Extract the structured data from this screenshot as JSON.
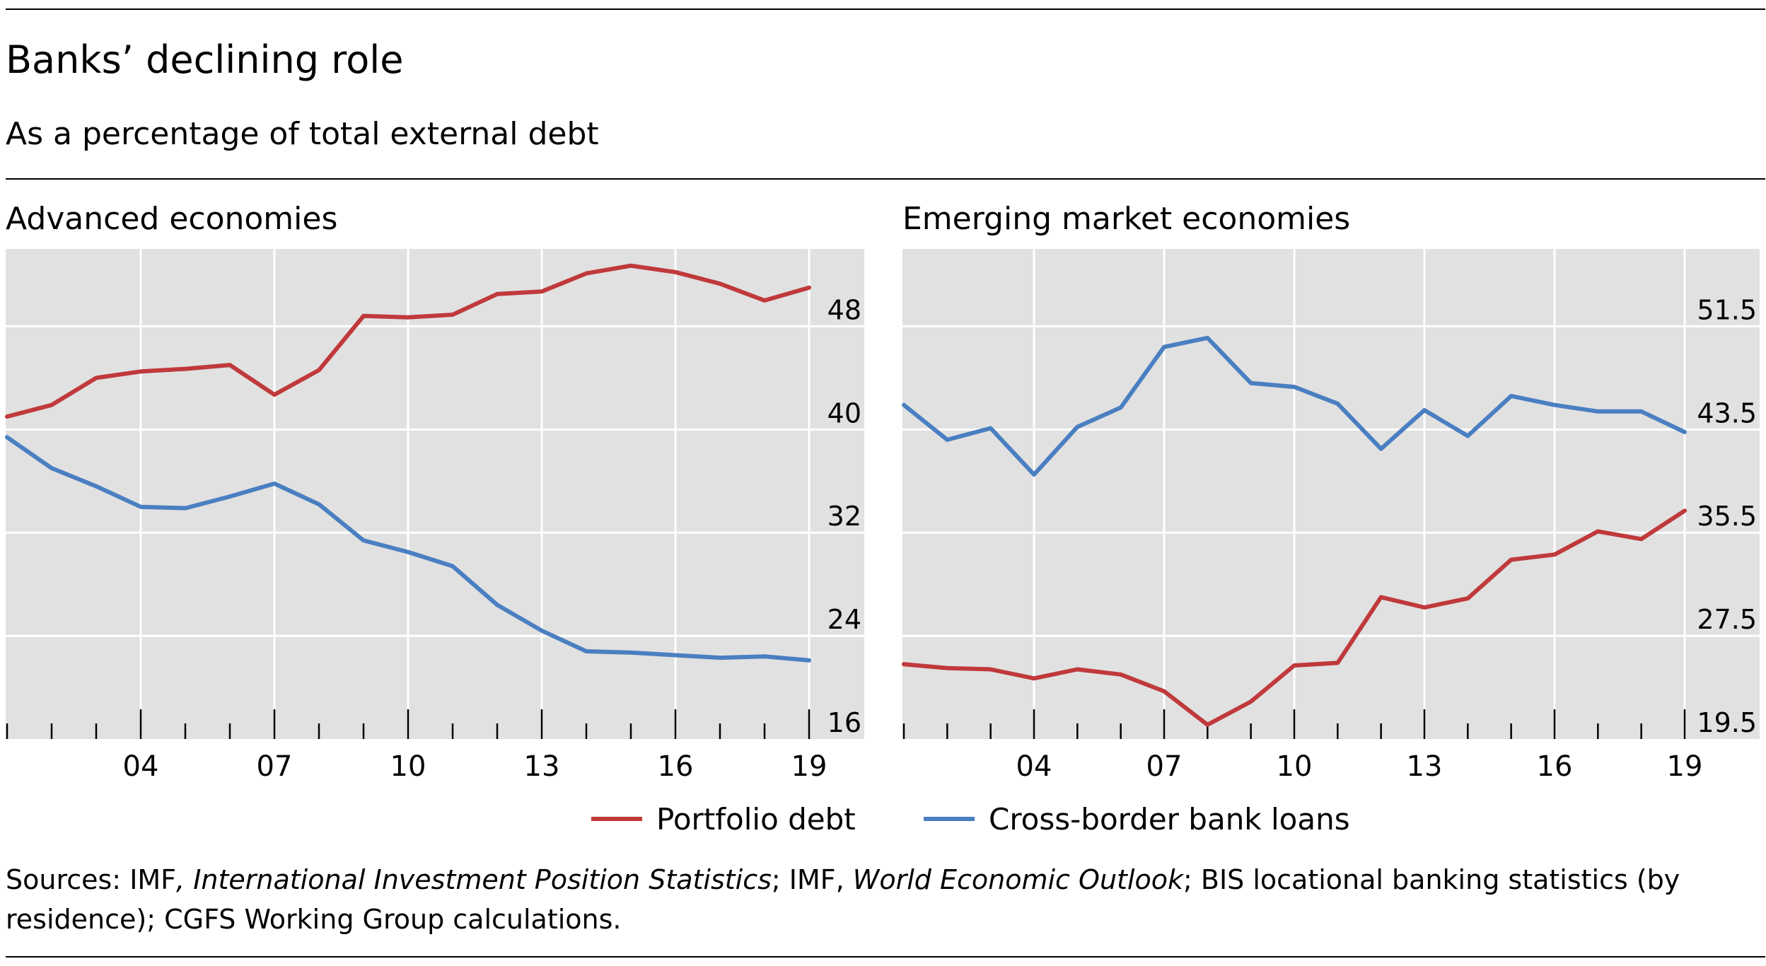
{
  "header": {
    "title": "Banks’ declining role",
    "subtitle": "As a percentage of total external debt"
  },
  "legend": {
    "portfolio_label": "Portfolio debt",
    "bank_label": "Cross-border bank loans"
  },
  "colors": {
    "portfolio": "#c0393b",
    "bank": "#4a7fc1",
    "plot_background": "#e1e1e1",
    "gridline": "#ffffff"
  },
  "sources": {
    "prefix": "Sources: IMF",
    "comma1": ", ",
    "iips": "International Investment Position Statistics",
    "mid": "; IMF, ",
    "weo": "World Economic Outlook",
    "suffix": "; BIS locational banking statistics (by residence); CGFS Working Group calculations."
  },
  "chart_data": [
    {
      "type": "line",
      "title": "Advanced economies",
      "x": [
        2001,
        2002,
        2003,
        2004,
        2005,
        2006,
        2007,
        2008,
        2009,
        2010,
        2011,
        2012,
        2013,
        2014,
        2015,
        2016,
        2017,
        2018,
        2019
      ],
      "x_tick_labels": [
        "04",
        "07",
        "10",
        "13",
        "16",
        "19"
      ],
      "x_tick_values": [
        2004,
        2007,
        2010,
        2013,
        2016,
        2019
      ],
      "y_ticks": [
        16,
        24,
        32,
        40,
        48
      ],
      "y_tick_labels": [
        "16",
        "24",
        "32",
        "40",
        "48"
      ],
      "ylim": [
        16,
        54
      ],
      "y_axis_side": "right",
      "grid": true,
      "series": [
        {
          "name": "Portfolio debt",
          "color": "#c0393b",
          "values": [
            41.0,
            41.9,
            44.0,
            44.5,
            44.7,
            45.0,
            42.7,
            44.6,
            48.8,
            48.7,
            48.9,
            50.5,
            50.7,
            52.1,
            52.7,
            52.2,
            51.3,
            50.0,
            51.0
          ]
        },
        {
          "name": "Cross-border bank loans",
          "color": "#4a7fc1",
          "values": [
            39.4,
            37.0,
            35.6,
            34.0,
            33.9,
            34.8,
            35.8,
            34.2,
            31.4,
            30.5,
            29.4,
            26.4,
            24.4,
            22.8,
            22.7,
            22.5,
            22.3,
            22.4,
            22.1
          ]
        }
      ]
    },
    {
      "type": "line",
      "title": "Emerging market economies",
      "x": [
        2001,
        2002,
        2003,
        2004,
        2005,
        2006,
        2007,
        2008,
        2009,
        2010,
        2011,
        2012,
        2013,
        2014,
        2015,
        2016,
        2017,
        2018,
        2019
      ],
      "x_tick_labels": [
        "04",
        "07",
        "10",
        "13",
        "16",
        "19"
      ],
      "x_tick_values": [
        2004,
        2007,
        2010,
        2013,
        2016,
        2019
      ],
      "y_ticks": [
        19.5,
        27.5,
        35.5,
        43.5,
        51.5
      ],
      "y_tick_labels": [
        "19.5",
        "27.5",
        "35.5",
        "43.5",
        "51.5"
      ],
      "ylim": [
        19.5,
        57.5
      ],
      "y_axis_side": "right",
      "grid": true,
      "series": [
        {
          "name": "Portfolio debt",
          "color": "#c0393b",
          "values": [
            25.3,
            25.0,
            24.9,
            24.2,
            24.9,
            24.5,
            23.2,
            20.6,
            22.4,
            25.2,
            25.4,
            30.5,
            29.7,
            30.4,
            33.4,
            33.8,
            35.6,
            35.0,
            37.2
          ]
        },
        {
          "name": "Cross-border bank loans",
          "color": "#4a7fc1",
          "values": [
            45.4,
            42.7,
            43.6,
            40.0,
            43.7,
            45.2,
            49.9,
            50.6,
            47.1,
            46.8,
            45.5,
            42.0,
            45.0,
            43.0,
            46.1,
            45.4,
            44.9,
            44.9,
            43.3
          ]
        }
      ]
    }
  ]
}
